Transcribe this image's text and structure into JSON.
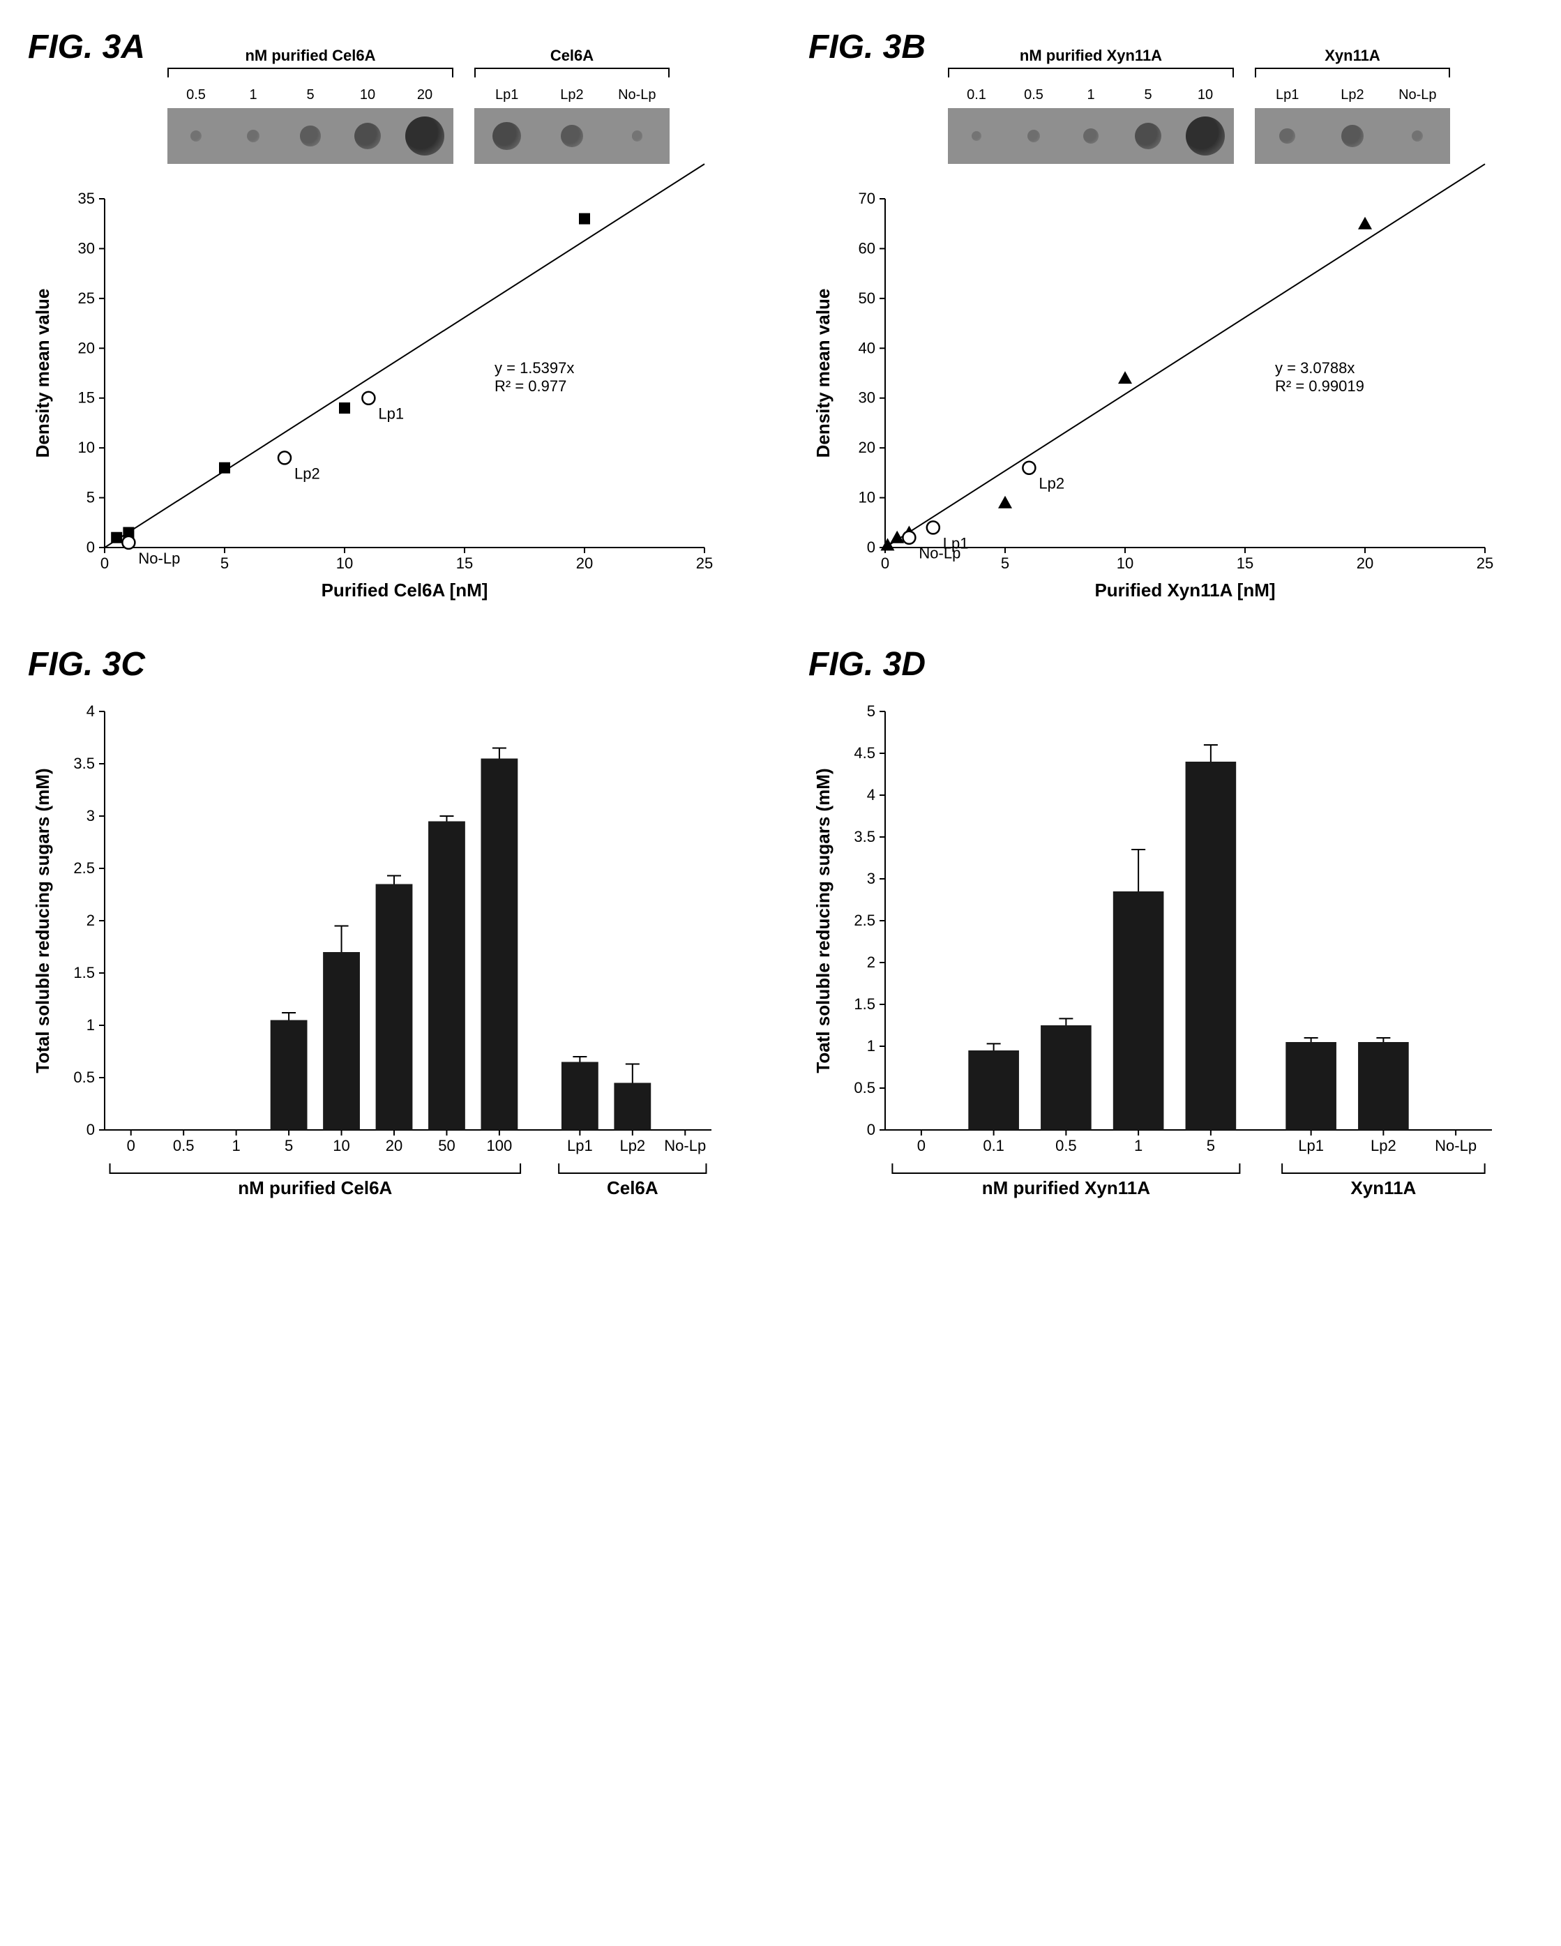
{
  "colors": {
    "bg": "#ffffff",
    "axis": "#000000",
    "bar": "#1a1a1a",
    "blot_bg": "#8f8f8f",
    "blot_dot": "#2b2b2b",
    "fit_line": "#000000"
  },
  "fonts": {
    "panel_label_pt": 48,
    "tick_pt": 22,
    "axis_title_pt": 26,
    "eq_pt": 22
  },
  "panelA": {
    "label": "FIG. 3A",
    "type": "scatter-regression",
    "xlabel": "Purified Cel6A [nM]",
    "ylabel": "Density mean value",
    "xlim": [
      0,
      25
    ],
    "xtick_step": 5,
    "ylim": [
      0,
      35
    ],
    "ytick_step": 5,
    "series": [
      {
        "name": "purified",
        "marker": "square-filled",
        "marker_color": "#000000",
        "marker_size": 14,
        "points": [
          [
            0.5,
            1
          ],
          [
            1,
            1.5
          ],
          [
            5,
            8
          ],
          [
            10,
            14
          ],
          [
            20,
            33
          ]
        ]
      },
      {
        "name": "samples",
        "marker": "circle-open",
        "marker_color": "#000000",
        "marker_size": 14,
        "points": [
          [
            1,
            0.5
          ],
          [
            7.5,
            9
          ],
          [
            11,
            15
          ]
        ],
        "labels": [
          "No-Lp",
          "Lp2",
          "Lp1"
        ]
      }
    ],
    "fit": {
      "slope": 1.5397,
      "intercept": 0,
      "r2": 0.977,
      "text1": "y = 1.5397x",
      "text2": "R² = 0.977"
    },
    "inset_blot": {
      "group1_title": "nM purified Cel6A",
      "group1_labels": [
        "0.5",
        "1",
        "5",
        "10",
        "20"
      ],
      "group1_intensity": [
        0.05,
        0.1,
        0.35,
        0.55,
        0.95
      ],
      "group2_title": "Cel6A",
      "group2_labels": [
        "Lp1",
        "Lp2",
        "No-Lp"
      ],
      "group2_intensity": [
        0.6,
        0.4,
        0.03
      ]
    }
  },
  "panelB": {
    "label": "FIG. 3B",
    "type": "scatter-regression",
    "xlabel": "Purified Xyn11A [nM]",
    "ylabel": "Density mean value",
    "xlim": [
      0,
      25
    ],
    "xtick_step": 5,
    "ylim": [
      0,
      70
    ],
    "ytick_step": 10,
    "series": [
      {
        "name": "purified",
        "marker": "triangle-filled",
        "marker_color": "#000000",
        "marker_size": 14,
        "points": [
          [
            0.1,
            0.5
          ],
          [
            0.5,
            2
          ],
          [
            1,
            3
          ],
          [
            5,
            9
          ],
          [
            10,
            34
          ],
          [
            20,
            65
          ]
        ]
      },
      {
        "name": "samples",
        "marker": "circle-open",
        "marker_color": "#000000",
        "marker_size": 14,
        "points": [
          [
            1,
            2
          ],
          [
            2,
            4
          ],
          [
            6,
            16
          ]
        ],
        "labels": [
          "No-Lp",
          "Lp1",
          "Lp2"
        ]
      }
    ],
    "fit": {
      "slope": 3.0788,
      "intercept": 0,
      "r2": 0.99019,
      "text1": "y = 3.0788x",
      "text2": "R² = 0.99019"
    },
    "inset_blot": {
      "group1_title": "nM purified Xyn11A",
      "group1_labels": [
        "0.1",
        "0.5",
        "1",
        "5",
        "10"
      ],
      "group1_intensity": [
        0.02,
        0.1,
        0.2,
        0.55,
        0.95
      ],
      "group2_title": "Xyn11A",
      "group2_labels": [
        "Lp1",
        "Lp2",
        "No-Lp"
      ],
      "group2_intensity": [
        0.2,
        0.4,
        0.05
      ]
    }
  },
  "panelC": {
    "label": "FIG. 3C",
    "type": "bar",
    "ylabel": "Total soluble reducing sugars (mM)",
    "ylim": [
      0,
      4
    ],
    "ytick_step": 0.5,
    "group1_title": "nM purified Cel6A",
    "group1_labels": [
      "0",
      "0.5",
      "1",
      "5",
      "10",
      "20",
      "50",
      "100"
    ],
    "group1_values": [
      0,
      0,
      0,
      1.05,
      1.7,
      2.35,
      2.95,
      3.55
    ],
    "group1_errors": [
      0,
      0,
      0,
      0.07,
      0.25,
      0.08,
      0.05,
      0.1
    ],
    "group2_title": "Cel6A",
    "group2_labels": [
      "Lp1",
      "Lp2",
      "No-Lp"
    ],
    "group2_values": [
      0.65,
      0.45,
      0
    ],
    "group2_errors": [
      0.05,
      0.18,
      0
    ],
    "bar_color": "#1a1a1a",
    "bar_width": 0.7
  },
  "panelD": {
    "label": "FIG. 3D",
    "type": "bar",
    "ylabel": "Toatl soluble reducing sugars (mM)",
    "ylim": [
      0,
      5
    ],
    "ytick_step": 0.5,
    "group1_title": "nM purified Xyn11A",
    "group1_labels": [
      "0",
      "0.1",
      "0.5",
      "1",
      "5"
    ],
    "group1_values": [
      0,
      0.95,
      1.25,
      2.85,
      4.4
    ],
    "group1_errors": [
      0,
      0.08,
      0.08,
      0.5,
      0.2
    ],
    "group2_title": "Xyn11A",
    "group2_labels": [
      "Lp1",
      "Lp2",
      "No-Lp"
    ],
    "group2_values": [
      1.05,
      1.05,
      0
    ],
    "group2_errors": [
      0.05,
      0.05,
      0
    ],
    "bar_color": "#1a1a1a",
    "bar_width": 0.7
  }
}
